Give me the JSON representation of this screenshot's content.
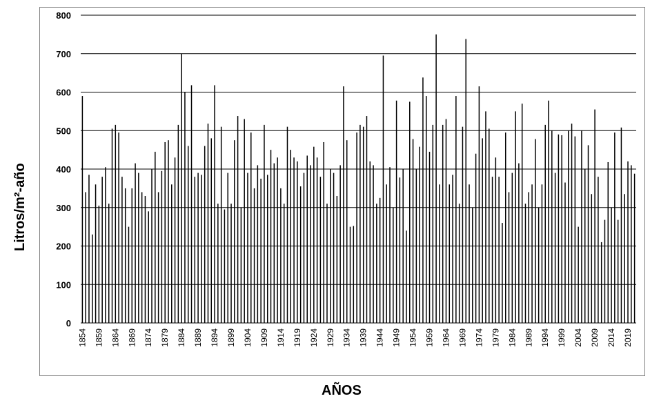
{
  "chart_data": {
    "type": "bar",
    "title": "",
    "xlabel": "AÑOS",
    "ylabel": "Litros/m²-año",
    "ylim": [
      0,
      800
    ],
    "yticks": [
      0,
      100,
      200,
      300,
      400,
      500,
      600,
      700,
      800
    ],
    "grid": true,
    "x_tick_labels": [
      "1854",
      "1859",
      "1864",
      "1869",
      "1874",
      "1879",
      "1884",
      "1889",
      "1894",
      "1899",
      "1904",
      "1909",
      "1914",
      "1919",
      "1924",
      "1929",
      "1934",
      "1939",
      "1944",
      "1949",
      "1954",
      "1959",
      "1964",
      "1969",
      "1974",
      "1979",
      "1984",
      "1989",
      "1994",
      "1999",
      "2004",
      "2009",
      "2014",
      "2019"
    ],
    "x_start": 1854,
    "x_end": 2022,
    "values": [
      590,
      340,
      385,
      230,
      360,
      305,
      380,
      405,
      310,
      505,
      515,
      495,
      380,
      350,
      250,
      350,
      415,
      390,
      340,
      330,
      290,
      400,
      445,
      340,
      395,
      470,
      475,
      360,
      430,
      515,
      700,
      600,
      460,
      618,
      380,
      390,
      385,
      460,
      518,
      480,
      618,
      310,
      510,
      295,
      390,
      310,
      475,
      538,
      300,
      530,
      390,
      495,
      350,
      410,
      375,
      515,
      385,
      450,
      415,
      430,
      350,
      310,
      510,
      450,
      430,
      420,
      355,
      390,
      435,
      410,
      458,
      430,
      380,
      470,
      310,
      400,
      390,
      330,
      410,
      615,
      475,
      250,
      252,
      495,
      515,
      510,
      538,
      420,
      410,
      310,
      325,
      695,
      360,
      405,
      300,
      578,
      378,
      400,
      240,
      575,
      478,
      400,
      458,
      638,
      590,
      445,
      515,
      750,
      360,
      515,
      530,
      360,
      385,
      590,
      310,
      510,
      738,
      360,
      300,
      440,
      615,
      480,
      550,
      505,
      380,
      430,
      380,
      260,
      495,
      340,
      390,
      550,
      415,
      570,
      310,
      340,
      360,
      478,
      300,
      360,
      515,
      578,
      500,
      390,
      490,
      488,
      365,
      500,
      518,
      485,
      250,
      500,
      400,
      462,
      335,
      555,
      380,
      210,
      268,
      418,
      300,
      495,
      268,
      508,
      335,
      420,
      410,
      388
    ]
  }
}
